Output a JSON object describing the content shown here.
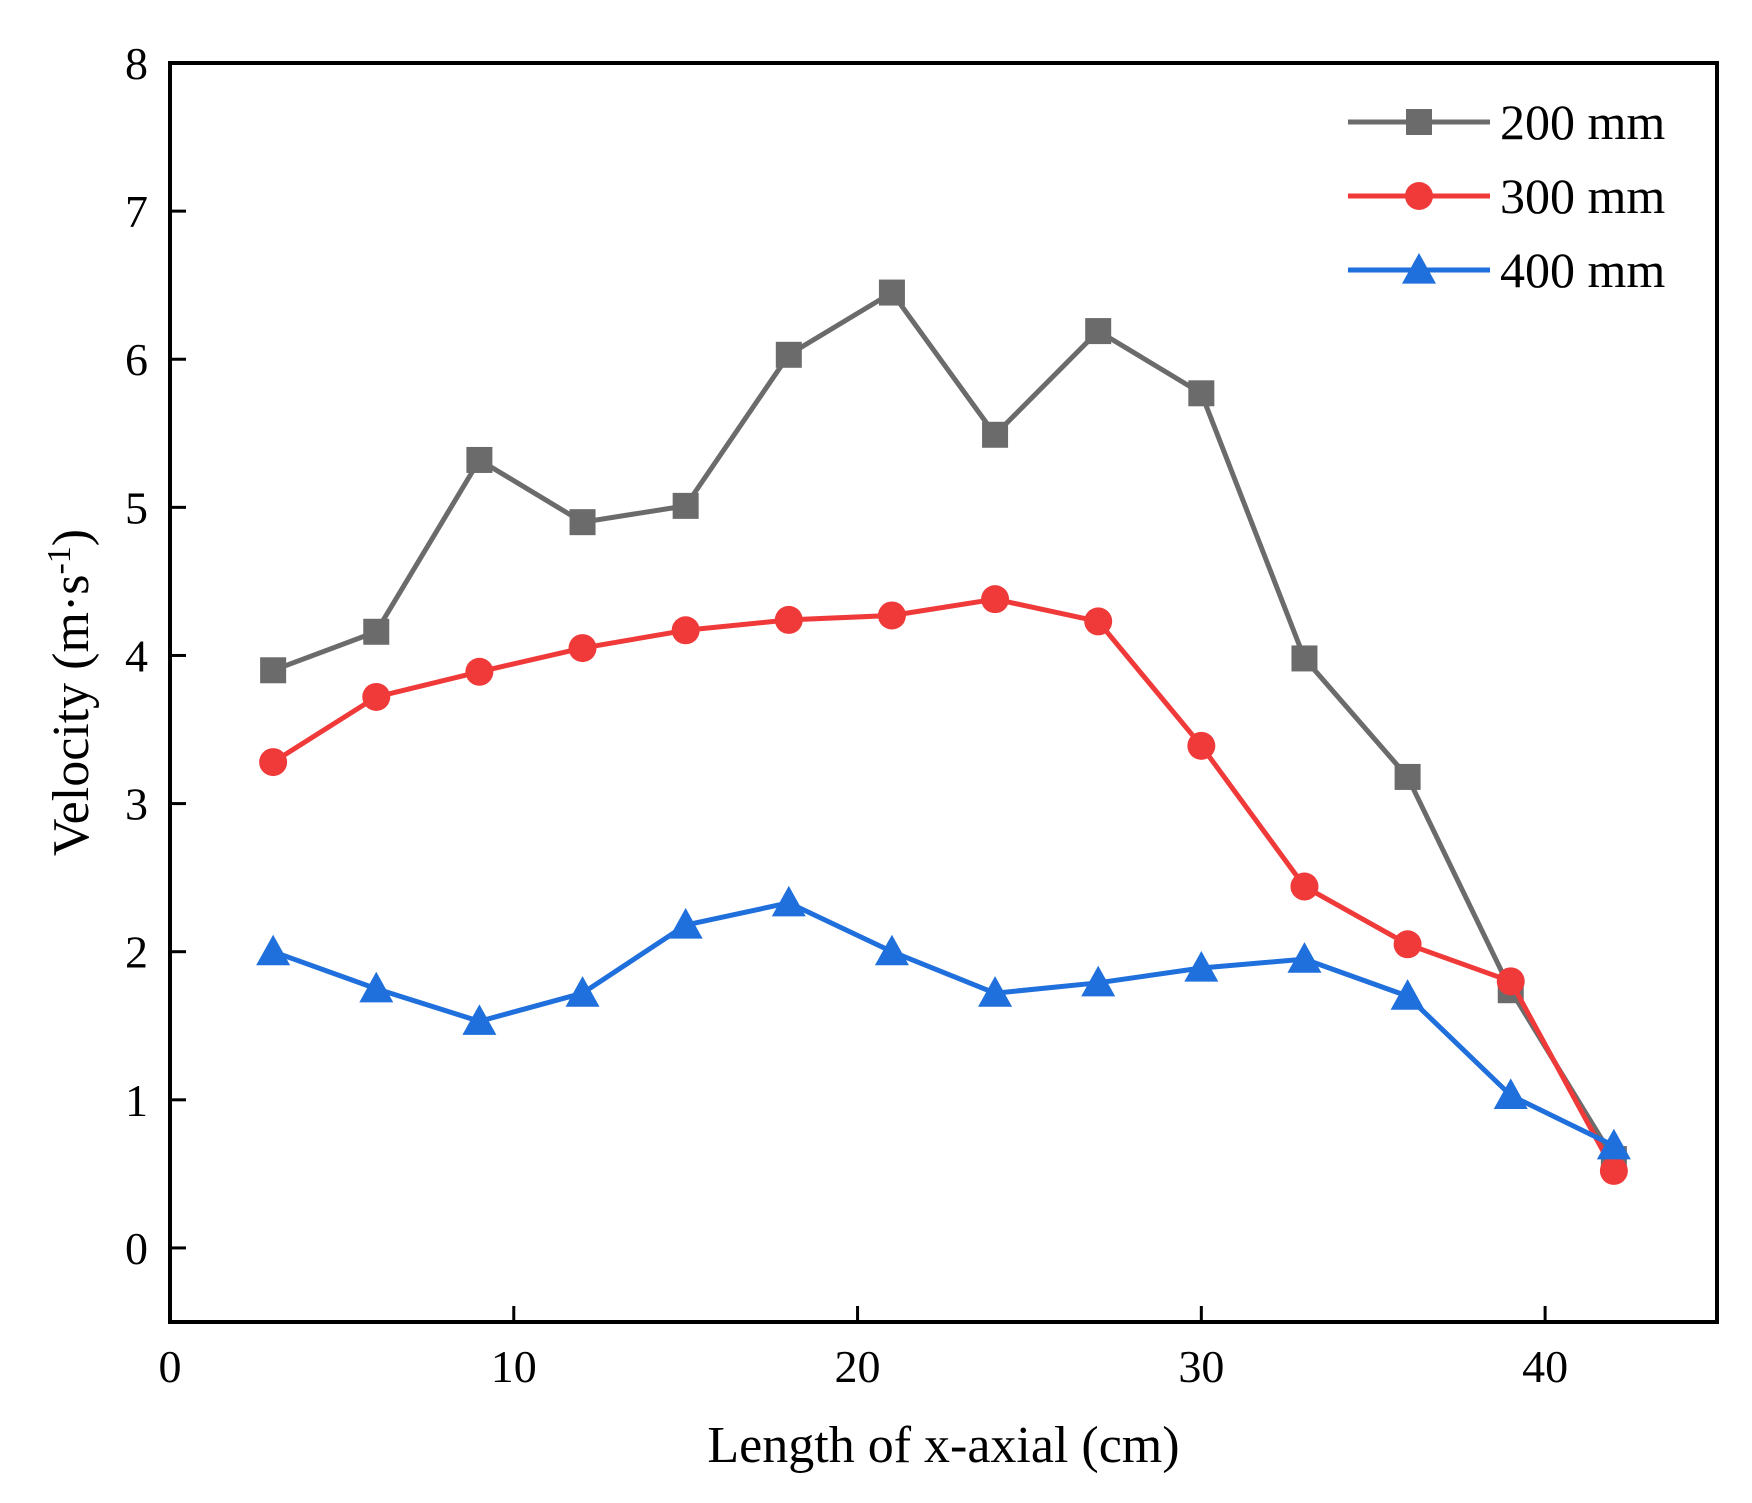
{
  "chart_data": {
    "type": "line",
    "title": "",
    "xlabel": "Length of x-axial (cm)",
    "ylabel_main": "Velocity (m·s",
    "ylabel_sup": "-1",
    "ylabel_close": ")",
    "ylabel": "Velocity (m·s-1)",
    "xlim": [
      0,
      45
    ],
    "ylim": [
      -0.5,
      8
    ],
    "xticks": [
      0,
      10,
      20,
      30,
      40
    ],
    "yticks": [
      0,
      1,
      2,
      3,
      4,
      5,
      6,
      7,
      8
    ],
    "grid": false,
    "legend_position": "top-right",
    "x": [
      3,
      6,
      9,
      12,
      15,
      18,
      21,
      24,
      27,
      30,
      33,
      36,
      39,
      42
    ],
    "series": [
      {
        "name": "200 mm",
        "color": "#6b6b6b",
        "marker": "square",
        "values": [
          3.9,
          4.16,
          5.32,
          4.9,
          5.01,
          6.03,
          6.45,
          5.49,
          6.19,
          5.77,
          3.98,
          3.18,
          1.74,
          0.6
        ]
      },
      {
        "name": "300 mm",
        "color": "#f03a3a",
        "marker": "circle",
        "values": [
          3.28,
          3.72,
          3.89,
          4.05,
          4.17,
          4.24,
          4.27,
          4.38,
          4.23,
          3.39,
          2.44,
          2.05,
          1.8,
          0.52
        ]
      },
      {
        "name": "400 mm",
        "color": "#1f6fdc",
        "marker": "triangle",
        "values": [
          2.0,
          1.75,
          1.53,
          1.72,
          2.18,
          2.33,
          2.0,
          1.72,
          1.79,
          1.89,
          1.95,
          1.7,
          1.03,
          0.69
        ]
      }
    ]
  }
}
